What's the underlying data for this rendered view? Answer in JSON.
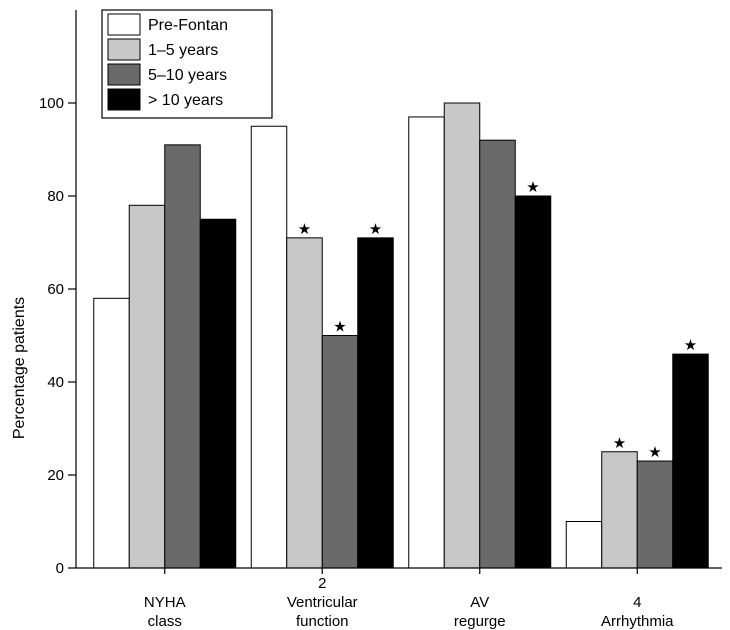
{
  "chart_data": {
    "type": "bar",
    "categories": [
      [
        "NYHA",
        "class"
      ],
      [
        "2",
        "Ventricular",
        "function"
      ],
      [
        "AV",
        "regurge"
      ],
      [
        "4",
        "Arrhythmia"
      ]
    ],
    "series": [
      {
        "name": "Pre-Fontan",
        "color": "#ffffff",
        "values": [
          58,
          95,
          97,
          10
        ],
        "starred": [
          false,
          false,
          false,
          false
        ]
      },
      {
        "name": "1–5 years",
        "color": "#c8c8c8",
        "values": [
          78,
          71,
          100,
          25
        ],
        "starred": [
          false,
          true,
          false,
          true
        ]
      },
      {
        "name": "5–10 years",
        "color": "#6a6a6a",
        "values": [
          91,
          50,
          92,
          23
        ],
        "starred": [
          false,
          true,
          false,
          true
        ]
      },
      {
        "name": "> 10 years",
        "color": "#000000",
        "values": [
          75,
          71,
          80,
          46
        ],
        "starred": [
          false,
          true,
          true,
          true
        ]
      }
    ],
    "marker_symbol": "★",
    "ylabel": "Percentage patients",
    "xlabel": "",
    "title": "",
    "yticks": [
      0,
      20,
      40,
      60,
      80,
      100
    ],
    "ylim": [
      0,
      120
    ],
    "legend_position": "top-left",
    "grid": false
  }
}
